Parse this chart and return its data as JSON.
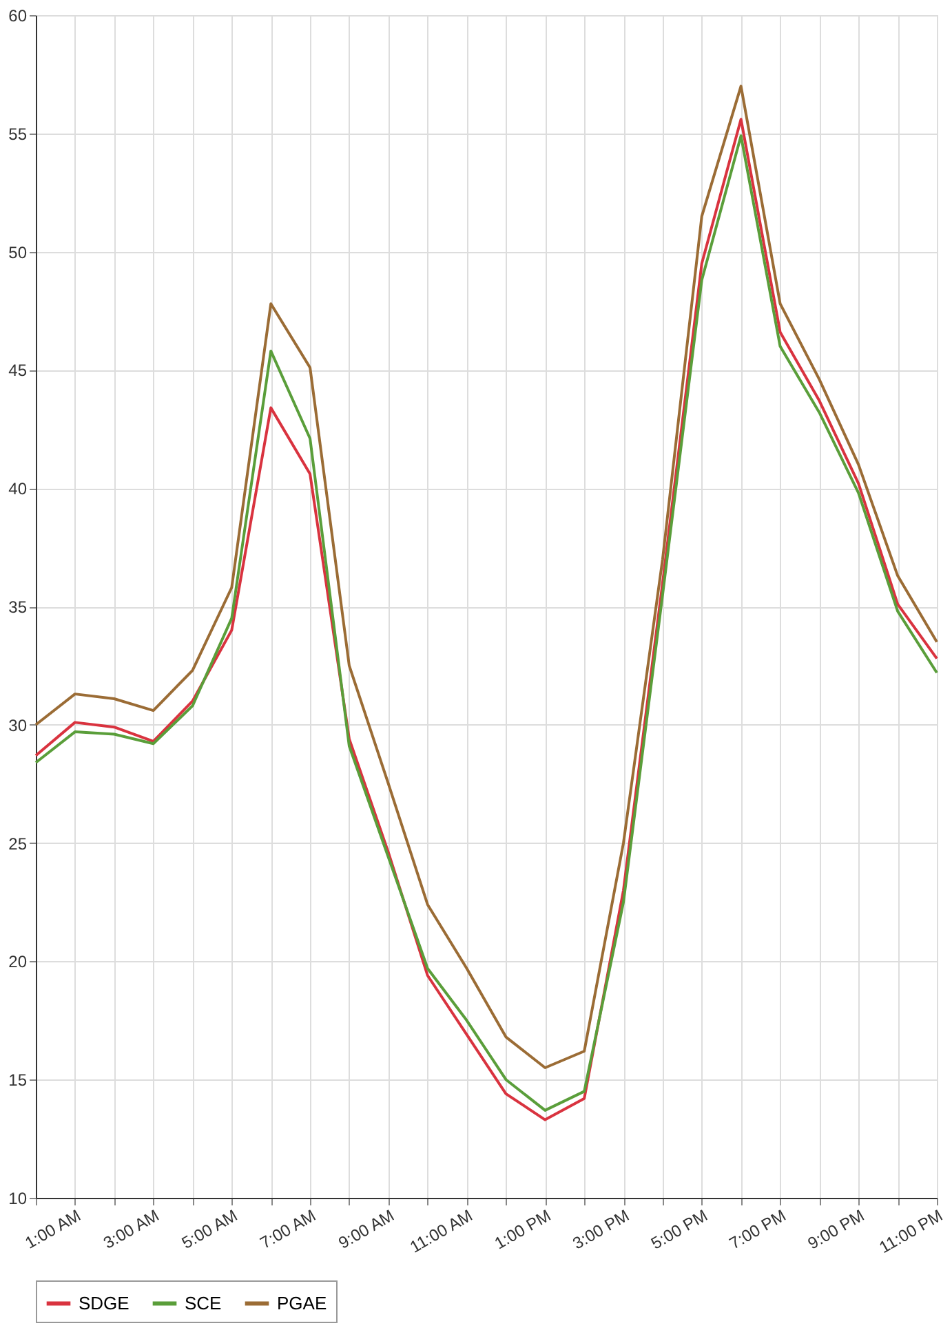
{
  "chart_data": {
    "type": "line",
    "x": [
      0,
      1,
      2,
      3,
      4,
      5,
      6,
      7,
      8,
      9,
      10,
      11,
      12,
      13,
      14,
      15,
      16,
      17,
      18,
      19,
      20,
      21,
      22,
      23
    ],
    "xlim": [
      0,
      23
    ],
    "xticks": [
      {
        "value": 0,
        "label": null
      },
      {
        "value": 1,
        "label": "1:00 AM"
      },
      {
        "value": 2,
        "label": null
      },
      {
        "value": 3,
        "label": "3:00 AM"
      },
      {
        "value": 4,
        "label": null
      },
      {
        "value": 5,
        "label": "5:00 AM"
      },
      {
        "value": 6,
        "label": null
      },
      {
        "value": 7,
        "label": "7:00 AM"
      },
      {
        "value": 8,
        "label": null
      },
      {
        "value": 9,
        "label": "9:00 AM"
      },
      {
        "value": 10,
        "label": null
      },
      {
        "value": 11,
        "label": "11:00 AM"
      },
      {
        "value": 12,
        "label": null
      },
      {
        "value": 13,
        "label": "1:00 PM"
      },
      {
        "value": 14,
        "label": null
      },
      {
        "value": 15,
        "label": "3:00 PM"
      },
      {
        "value": 16,
        "label": null
      },
      {
        "value": 17,
        "label": "5:00 PM"
      },
      {
        "value": 18,
        "label": null
      },
      {
        "value": 19,
        "label": "7:00 PM"
      },
      {
        "value": 20,
        "label": null
      },
      {
        "value": 21,
        "label": "9:00 PM"
      },
      {
        "value": 22,
        "label": null
      },
      {
        "value": 23,
        "label": "11:00 PM"
      }
    ],
    "ylim": [
      10,
      60
    ],
    "yticks": [
      10,
      15,
      20,
      25,
      30,
      35,
      40,
      45,
      50,
      55,
      60
    ],
    "grid": true,
    "legend": "bottom",
    "marker": "none",
    "line_style": "solid",
    "series": [
      {
        "name": "SDGE",
        "color": "#d9333f",
        "values": [
          28.7,
          30.1,
          29.9,
          29.3,
          31.0,
          34.0,
          43.4,
          40.6,
          29.4,
          24.6,
          19.4,
          16.9,
          14.4,
          13.3,
          14.2,
          23.0,
          36.0,
          49.5,
          55.6,
          46.6,
          43.7,
          40.2,
          35.1,
          32.8
        ]
      },
      {
        "name": "SCE",
        "color": "#5a9e3a",
        "values": [
          28.4,
          29.7,
          29.6,
          29.2,
          30.8,
          34.5,
          45.8,
          42.1,
          29.1,
          24.4,
          19.7,
          17.5,
          15.0,
          13.7,
          14.5,
          22.5,
          35.5,
          48.8,
          54.9,
          46.0,
          43.2,
          39.8,
          34.8,
          32.2
        ]
      },
      {
        "name": "PGAE",
        "color": "#9b6c35",
        "values": [
          30.0,
          31.3,
          31.1,
          30.6,
          32.3,
          35.8,
          47.8,
          45.1,
          32.5,
          27.5,
          22.4,
          19.7,
          16.8,
          15.5,
          16.2,
          25.0,
          37.0,
          51.5,
          57.0,
          47.8,
          44.6,
          41.0,
          36.3,
          33.5
        ]
      }
    ]
  }
}
